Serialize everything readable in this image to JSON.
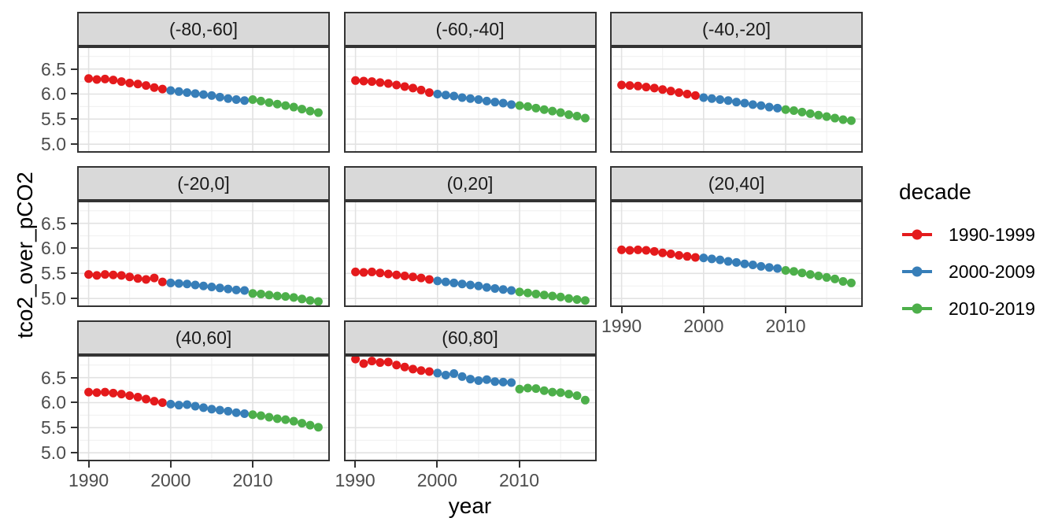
{
  "figure": {
    "xlabel": "year",
    "ylabel": "tco2_over_pCO2",
    "legend": {
      "title": "decade",
      "entries": [
        {
          "label": "1990-1999",
          "color": "#E41A1C"
        },
        {
          "label": "2000-2009",
          "color": "#377EB8"
        },
        {
          "label": "2010-2019",
          "color": "#4DAF4A"
        }
      ]
    }
  },
  "chart_data": {
    "type": "scatter",
    "title": "",
    "xlabel": "year",
    "ylabel": "tco2_over_pCO2",
    "facet_variable": "latitude band",
    "legend_position": "right",
    "grid": true,
    "xlim": [
      1988.6,
      2019.4
    ],
    "ylim": [
      4.83,
      6.95
    ],
    "x_ticks": [
      1990,
      2000,
      2010
    ],
    "x_tick_labels": [
      "1990",
      "2000",
      "2010"
    ],
    "x_minor_ticks": [
      1995,
      2005,
      2015
    ],
    "y_ticks": [
      5.0,
      5.5,
      6.0,
      6.5
    ],
    "y_tick_labels": [
      "5.0",
      "5.5",
      "6.0",
      "6.5"
    ],
    "y_minor_ticks": [
      5.25,
      5.75,
      6.25,
      6.75
    ],
    "decade_colors": [
      "#E41A1C",
      "#377EB8",
      "#4DAF4A"
    ],
    "decade_labels": [
      "1990-1999",
      "2000-2009",
      "2010-2019"
    ],
    "years": [
      1990,
      1991,
      1992,
      1993,
      1994,
      1995,
      1996,
      1997,
      1998,
      1999,
      2000,
      2001,
      2002,
      2003,
      2004,
      2005,
      2006,
      2007,
      2008,
      2009,
      2010,
      2011,
      2012,
      2013,
      2014,
      2015,
      2016,
      2017,
      2018
    ],
    "facets": [
      {
        "label": "(-80,-60]",
        "values": [
          6.31,
          6.29,
          6.3,
          6.28,
          6.25,
          6.22,
          6.2,
          6.17,
          6.13,
          6.1,
          6.07,
          6.05,
          6.03,
          6.01,
          5.99,
          5.97,
          5.94,
          5.91,
          5.89,
          5.87,
          5.89,
          5.86,
          5.83,
          5.8,
          5.77,
          5.74,
          5.7,
          5.66,
          5.63
        ]
      },
      {
        "label": "(-60,-40]",
        "values": [
          6.27,
          6.26,
          6.25,
          6.23,
          6.21,
          6.18,
          6.15,
          6.12,
          6.08,
          6.03,
          6.0,
          5.98,
          5.96,
          5.93,
          5.91,
          5.89,
          5.86,
          5.84,
          5.82,
          5.79,
          5.77,
          5.75,
          5.72,
          5.69,
          5.66,
          5.63,
          5.59,
          5.56,
          5.52
        ]
      },
      {
        "label": "(-40,-20]",
        "values": [
          6.18,
          6.17,
          6.16,
          6.14,
          6.12,
          6.09,
          6.06,
          6.03,
          6.0,
          5.97,
          5.93,
          5.91,
          5.89,
          5.87,
          5.84,
          5.82,
          5.79,
          5.77,
          5.74,
          5.72,
          5.69,
          5.67,
          5.64,
          5.61,
          5.58,
          5.55,
          5.52,
          5.49,
          5.47
        ]
      },
      {
        "label": "(-20,0]",
        "values": [
          5.48,
          5.46,
          5.48,
          5.47,
          5.46,
          5.43,
          5.4,
          5.38,
          5.41,
          5.33,
          5.31,
          5.3,
          5.29,
          5.27,
          5.25,
          5.23,
          5.21,
          5.19,
          5.17,
          5.16,
          5.1,
          5.09,
          5.07,
          5.05,
          5.04,
          5.02,
          4.99,
          4.96,
          4.94
        ]
      },
      {
        "label": "(0,20]",
        "values": [
          5.53,
          5.52,
          5.53,
          5.51,
          5.49,
          5.47,
          5.45,
          5.43,
          5.41,
          5.38,
          5.35,
          5.33,
          5.31,
          5.29,
          5.27,
          5.25,
          5.22,
          5.2,
          5.18,
          5.16,
          5.13,
          5.11,
          5.09,
          5.07,
          5.05,
          5.03,
          5.0,
          4.98,
          4.96
        ]
      },
      {
        "label": "(20,40]",
        "values": [
          5.97,
          5.96,
          5.97,
          5.96,
          5.94,
          5.91,
          5.89,
          5.86,
          5.84,
          5.82,
          5.81,
          5.79,
          5.77,
          5.74,
          5.72,
          5.69,
          5.67,
          5.64,
          5.62,
          5.6,
          5.56,
          5.54,
          5.51,
          5.48,
          5.45,
          5.42,
          5.39,
          5.34,
          5.31
        ]
      },
      {
        "label": "(40,60]",
        "values": [
          6.21,
          6.2,
          6.21,
          6.19,
          6.17,
          6.14,
          6.11,
          6.07,
          6.03,
          6.0,
          5.97,
          5.95,
          5.96,
          5.93,
          5.9,
          5.87,
          5.85,
          5.83,
          5.8,
          5.78,
          5.76,
          5.74,
          5.71,
          5.68,
          5.66,
          5.63,
          5.59,
          5.55,
          5.51
        ]
      },
      {
        "label": "(60,80]",
        "values": [
          6.87,
          6.78,
          6.83,
          6.8,
          6.81,
          6.75,
          6.71,
          6.67,
          6.64,
          6.62,
          6.59,
          6.55,
          6.58,
          6.52,
          6.47,
          6.44,
          6.46,
          6.42,
          6.41,
          6.4,
          6.27,
          6.29,
          6.28,
          6.24,
          6.21,
          6.2,
          6.17,
          6.14,
          6.05
        ]
      }
    ]
  }
}
